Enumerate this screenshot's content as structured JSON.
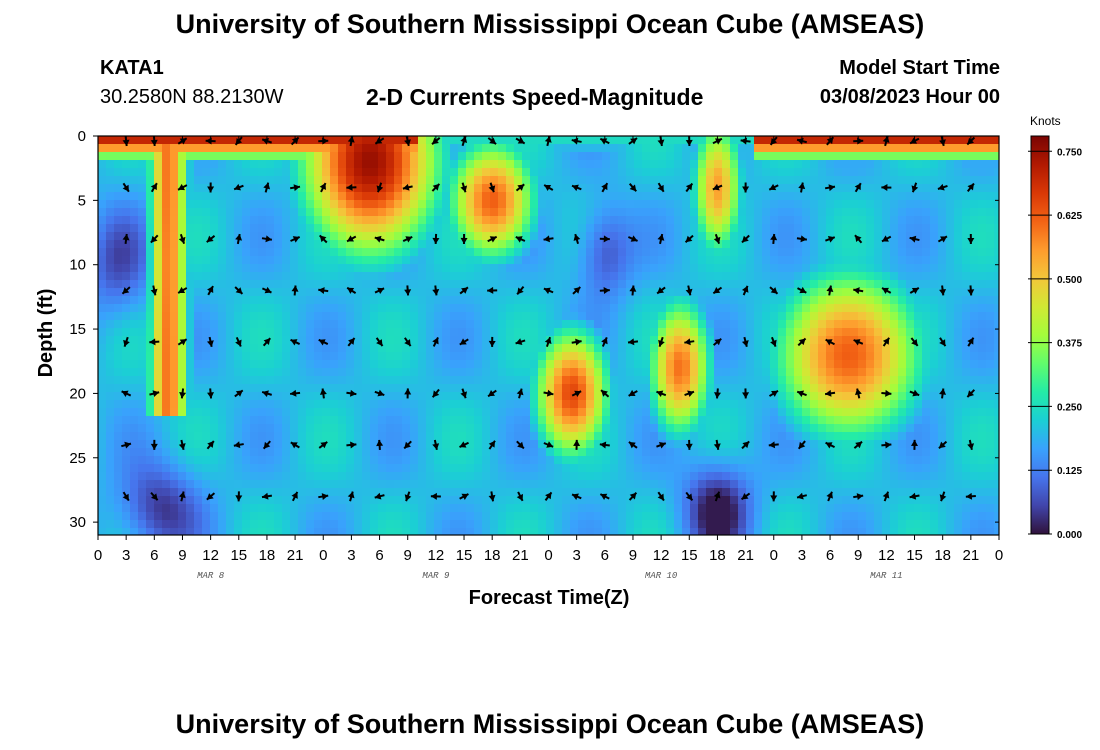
{
  "header": {
    "title": "University of Southern Mississippi Ocean Cube (AMSEAS)",
    "station": "KATA1",
    "coords": "30.2580N  88.2130W",
    "subtitle": "2-D Currents Speed-Magnitude",
    "model_start_label": "Model Start Time",
    "model_start_value": "03/08/2023 Hour 00"
  },
  "footer": {
    "title": "University of Southern Mississippi Ocean Cube (AMSEAS)"
  },
  "chart_data": {
    "type": "heatmap",
    "title": "2-D Currents Speed-Magnitude",
    "xlabel": "Forecast Time(Z)",
    "ylabel": "Depth (ft)",
    "x_range_hours": [
      0,
      96
    ],
    "y_range_ft": [
      0,
      31
    ],
    "y_inverted": true,
    "x_ticks": [
      "0",
      "3",
      "6",
      "9",
      "12",
      "15",
      "18",
      "21",
      "0",
      "3",
      "6",
      "9",
      "12",
      "15",
      "18",
      "21",
      "0",
      "3",
      "6",
      "9",
      "12",
      "15",
      "18",
      "21",
      "0",
      "3",
      "6",
      "9",
      "12",
      "15",
      "18",
      "21",
      "0"
    ],
    "y_ticks": [
      "0",
      "5",
      "10",
      "15",
      "20",
      "25",
      "30"
    ],
    "day_labels": [
      {
        "label": "MAR 8",
        "hour": 12
      },
      {
        "label": "MAR 9",
        "hour": 36
      },
      {
        "label": "MAR 10",
        "hour": 60
      },
      {
        "label": "MAR 11",
        "hour": 84
      }
    ],
    "colorbar": {
      "unit": "Knots",
      "min": 0.0,
      "max": 0.78,
      "ticks": [
        "0.000",
        "0.125",
        "0.250",
        "0.375",
        "0.500",
        "0.625",
        "0.750"
      ],
      "colors": [
        "#30123b",
        "#4145ab",
        "#4675ed",
        "#39a2fc",
        "#1bcfd4",
        "#24eca6",
        "#61fc6c",
        "#a4fc3b",
        "#d1e834",
        "#f3c63a",
        "#fe9b2d",
        "#f36315",
        "#d93806",
        "#b11901",
        "#7a0402"
      ]
    },
    "features": [
      {
        "name": "surface-band",
        "speed": 0.72
      },
      {
        "name": "deep-left-column",
        "speed": 0.6
      },
      {
        "name": "day2-upper-core",
        "speed": 0.75
      },
      {
        "name": "mid-depth-core-day3",
        "speed": 0.65
      },
      {
        "name": "mid-depth-core-day4",
        "speed": 0.62
      },
      {
        "name": "low-speed-pocket",
        "speed": 0.02
      }
    ],
    "vectors": {
      "depth_rows_ft": [
        0,
        4,
        8,
        12,
        16,
        20,
        24,
        28
      ],
      "hour_step": 3
    }
  }
}
